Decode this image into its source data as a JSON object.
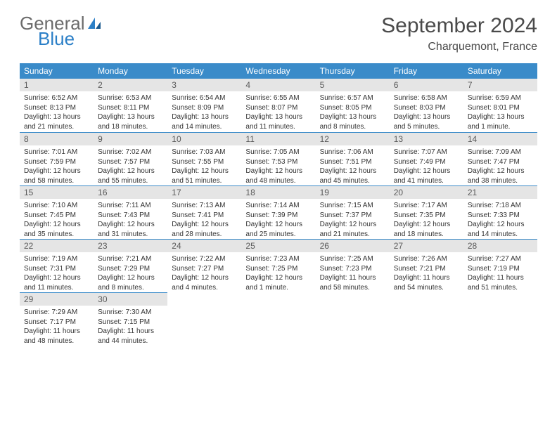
{
  "logo": {
    "text1": "General",
    "text2": "Blue"
  },
  "title": "September 2024",
  "location": "Charquemont, France",
  "colors": {
    "header_bg": "#3a8bc9",
    "header_text": "#ffffff",
    "daynum_bg": "#e5e5e5",
    "daynum_text": "#5a5a5a",
    "rule": "#3a8bc9",
    "logo_gray": "#6b6b6b",
    "logo_blue": "#2b7fc7",
    "title_color": "#4a4a4a"
  },
  "day_headers": [
    "Sunday",
    "Monday",
    "Tuesday",
    "Wednesday",
    "Thursday",
    "Friday",
    "Saturday"
  ],
  "weeks": [
    [
      {
        "n": "1",
        "sr": "Sunrise: 6:52 AM",
        "ss": "Sunset: 8:13 PM",
        "dl": "Daylight: 13 hours and 21 minutes."
      },
      {
        "n": "2",
        "sr": "Sunrise: 6:53 AM",
        "ss": "Sunset: 8:11 PM",
        "dl": "Daylight: 13 hours and 18 minutes."
      },
      {
        "n": "3",
        "sr": "Sunrise: 6:54 AM",
        "ss": "Sunset: 8:09 PM",
        "dl": "Daylight: 13 hours and 14 minutes."
      },
      {
        "n": "4",
        "sr": "Sunrise: 6:55 AM",
        "ss": "Sunset: 8:07 PM",
        "dl": "Daylight: 13 hours and 11 minutes."
      },
      {
        "n": "5",
        "sr": "Sunrise: 6:57 AM",
        "ss": "Sunset: 8:05 PM",
        "dl": "Daylight: 13 hours and 8 minutes."
      },
      {
        "n": "6",
        "sr": "Sunrise: 6:58 AM",
        "ss": "Sunset: 8:03 PM",
        "dl": "Daylight: 13 hours and 5 minutes."
      },
      {
        "n": "7",
        "sr": "Sunrise: 6:59 AM",
        "ss": "Sunset: 8:01 PM",
        "dl": "Daylight: 13 hours and 1 minute."
      }
    ],
    [
      {
        "n": "8",
        "sr": "Sunrise: 7:01 AM",
        "ss": "Sunset: 7:59 PM",
        "dl": "Daylight: 12 hours and 58 minutes."
      },
      {
        "n": "9",
        "sr": "Sunrise: 7:02 AM",
        "ss": "Sunset: 7:57 PM",
        "dl": "Daylight: 12 hours and 55 minutes."
      },
      {
        "n": "10",
        "sr": "Sunrise: 7:03 AM",
        "ss": "Sunset: 7:55 PM",
        "dl": "Daylight: 12 hours and 51 minutes."
      },
      {
        "n": "11",
        "sr": "Sunrise: 7:05 AM",
        "ss": "Sunset: 7:53 PM",
        "dl": "Daylight: 12 hours and 48 minutes."
      },
      {
        "n": "12",
        "sr": "Sunrise: 7:06 AM",
        "ss": "Sunset: 7:51 PM",
        "dl": "Daylight: 12 hours and 45 minutes."
      },
      {
        "n": "13",
        "sr": "Sunrise: 7:07 AM",
        "ss": "Sunset: 7:49 PM",
        "dl": "Daylight: 12 hours and 41 minutes."
      },
      {
        "n": "14",
        "sr": "Sunrise: 7:09 AM",
        "ss": "Sunset: 7:47 PM",
        "dl": "Daylight: 12 hours and 38 minutes."
      }
    ],
    [
      {
        "n": "15",
        "sr": "Sunrise: 7:10 AM",
        "ss": "Sunset: 7:45 PM",
        "dl": "Daylight: 12 hours and 35 minutes."
      },
      {
        "n": "16",
        "sr": "Sunrise: 7:11 AM",
        "ss": "Sunset: 7:43 PM",
        "dl": "Daylight: 12 hours and 31 minutes."
      },
      {
        "n": "17",
        "sr": "Sunrise: 7:13 AM",
        "ss": "Sunset: 7:41 PM",
        "dl": "Daylight: 12 hours and 28 minutes."
      },
      {
        "n": "18",
        "sr": "Sunrise: 7:14 AM",
        "ss": "Sunset: 7:39 PM",
        "dl": "Daylight: 12 hours and 25 minutes."
      },
      {
        "n": "19",
        "sr": "Sunrise: 7:15 AM",
        "ss": "Sunset: 7:37 PM",
        "dl": "Daylight: 12 hours and 21 minutes."
      },
      {
        "n": "20",
        "sr": "Sunrise: 7:17 AM",
        "ss": "Sunset: 7:35 PM",
        "dl": "Daylight: 12 hours and 18 minutes."
      },
      {
        "n": "21",
        "sr": "Sunrise: 7:18 AM",
        "ss": "Sunset: 7:33 PM",
        "dl": "Daylight: 12 hours and 14 minutes."
      }
    ],
    [
      {
        "n": "22",
        "sr": "Sunrise: 7:19 AM",
        "ss": "Sunset: 7:31 PM",
        "dl": "Daylight: 12 hours and 11 minutes."
      },
      {
        "n": "23",
        "sr": "Sunrise: 7:21 AM",
        "ss": "Sunset: 7:29 PM",
        "dl": "Daylight: 12 hours and 8 minutes."
      },
      {
        "n": "24",
        "sr": "Sunrise: 7:22 AM",
        "ss": "Sunset: 7:27 PM",
        "dl": "Daylight: 12 hours and 4 minutes."
      },
      {
        "n": "25",
        "sr": "Sunrise: 7:23 AM",
        "ss": "Sunset: 7:25 PM",
        "dl": "Daylight: 12 hours and 1 minute."
      },
      {
        "n": "26",
        "sr": "Sunrise: 7:25 AM",
        "ss": "Sunset: 7:23 PM",
        "dl": "Daylight: 11 hours and 58 minutes."
      },
      {
        "n": "27",
        "sr": "Sunrise: 7:26 AM",
        "ss": "Sunset: 7:21 PM",
        "dl": "Daylight: 11 hours and 54 minutes."
      },
      {
        "n": "28",
        "sr": "Sunrise: 7:27 AM",
        "ss": "Sunset: 7:19 PM",
        "dl": "Daylight: 11 hours and 51 minutes."
      }
    ],
    [
      {
        "n": "29",
        "sr": "Sunrise: 7:29 AM",
        "ss": "Sunset: 7:17 PM",
        "dl": "Daylight: 11 hours and 48 minutes."
      },
      {
        "n": "30",
        "sr": "Sunrise: 7:30 AM",
        "ss": "Sunset: 7:15 PM",
        "dl": "Daylight: 11 hours and 44 minutes."
      },
      null,
      null,
      null,
      null,
      null
    ]
  ]
}
